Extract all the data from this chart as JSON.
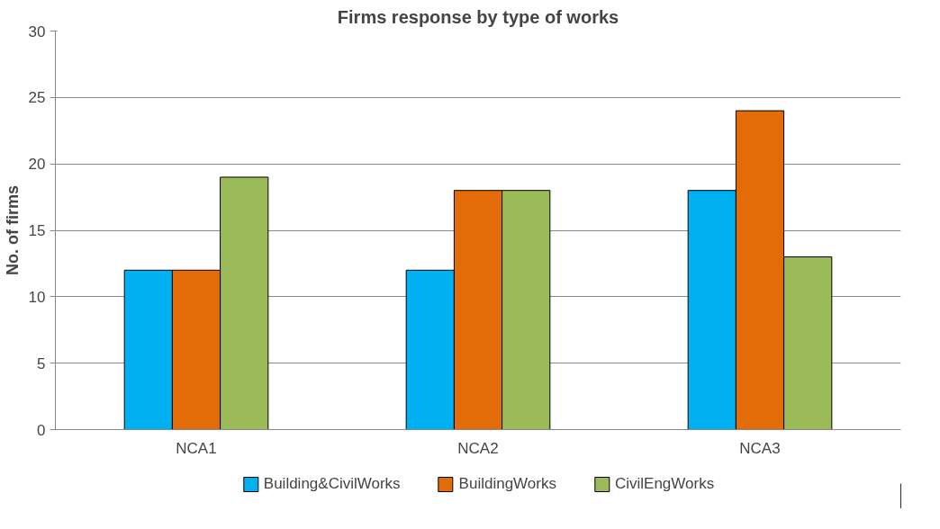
{
  "chart_data": {
    "type": "bar",
    "title": "Firms response by type of works",
    "ylabel": "No. of firms",
    "categories": [
      "NCA1",
      "NCA2",
      "NCA3"
    ],
    "series": [
      {
        "name": "Building&CivilWorks",
        "color": "#00b0f0",
        "values": [
          12,
          12,
          18
        ]
      },
      {
        "name": "BuildingWorks",
        "color": "#e36c09",
        "values": [
          12,
          18,
          24
        ]
      },
      {
        "name": "CivilEngWorks",
        "color": "#9bbb59",
        "values": [
          19,
          18,
          13
        ]
      }
    ],
    "ylim": [
      0,
      30
    ],
    "yticks": [
      0,
      5,
      10,
      15,
      20,
      25,
      30
    ],
    "grid": "y",
    "legend": "bottom"
  }
}
